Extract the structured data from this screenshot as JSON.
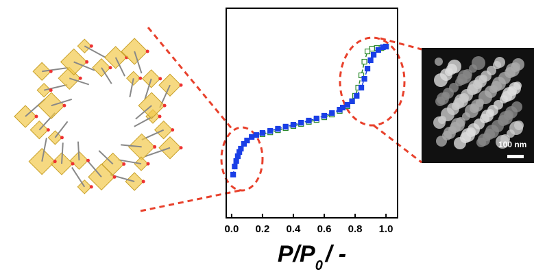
{
  "chart_data": {
    "type": "scatter",
    "xlabel": [
      "P/P",
      "0",
      "/ -"
    ],
    "xlim": [
      -0.035,
      1.075
    ],
    "ylim": [
      0,
      100
    ],
    "xticks": [
      {
        "value": 0,
        "label": "0.0"
      },
      0.2,
      0.4,
      0.6,
      0.8,
      {
        "value": 1,
        "label": "1.0"
      }
    ],
    "series": [
      {
        "color": "#1a3fe6",
        "filled": true,
        "x": [
          0.01,
          0.02,
          0.03,
          0.04,
          0.05,
          0.06,
          0.08,
          0.1,
          0.13,
          0.16,
          0.2,
          0.25,
          0.3,
          0.35,
          0.4,
          0.45,
          0.5,
          0.55,
          0.6,
          0.65,
          0.7,
          0.72,
          0.75,
          0.78,
          0.81,
          0.84,
          0.86,
          0.88,
          0.9,
          0.92,
          0.95,
          0.98,
          1.0
        ],
        "values": [
          20.6,
          24.5,
          27.1,
          29.4,
          31.4,
          33.0,
          35.3,
          36.9,
          38.6,
          39.5,
          40.5,
          41.5,
          42.5,
          43.5,
          44.4,
          45.4,
          46.4,
          47.4,
          48.7,
          50.0,
          51.6,
          52.6,
          53.9,
          55.6,
          58.2,
          62.1,
          66.3,
          71.2,
          75.2,
          77.8,
          80.1,
          81.4,
          81.7
        ]
      },
      {
        "color": "#2e8b2e",
        "filled": false,
        "x": [
          1.0,
          0.97,
          0.94,
          0.91,
          0.88,
          0.86,
          0.84,
          0.82,
          0.8,
          0.78,
          0.75,
          0.7,
          0.65,
          0.6,
          0.55,
          0.5,
          0.45,
          0.4,
          0.35,
          0.3,
          0.25,
          0.2
        ],
        "values": [
          81.7,
          81.0,
          81.0,
          80.7,
          79.4,
          74.5,
          68.0,
          62.1,
          58.2,
          55.6,
          53.3,
          51.0,
          49.3,
          48.0,
          46.7,
          45.8,
          44.8,
          43.8,
          42.8,
          41.8,
          40.8,
          39.9
        ]
      }
    ]
  },
  "image_label": "100 nm"
}
